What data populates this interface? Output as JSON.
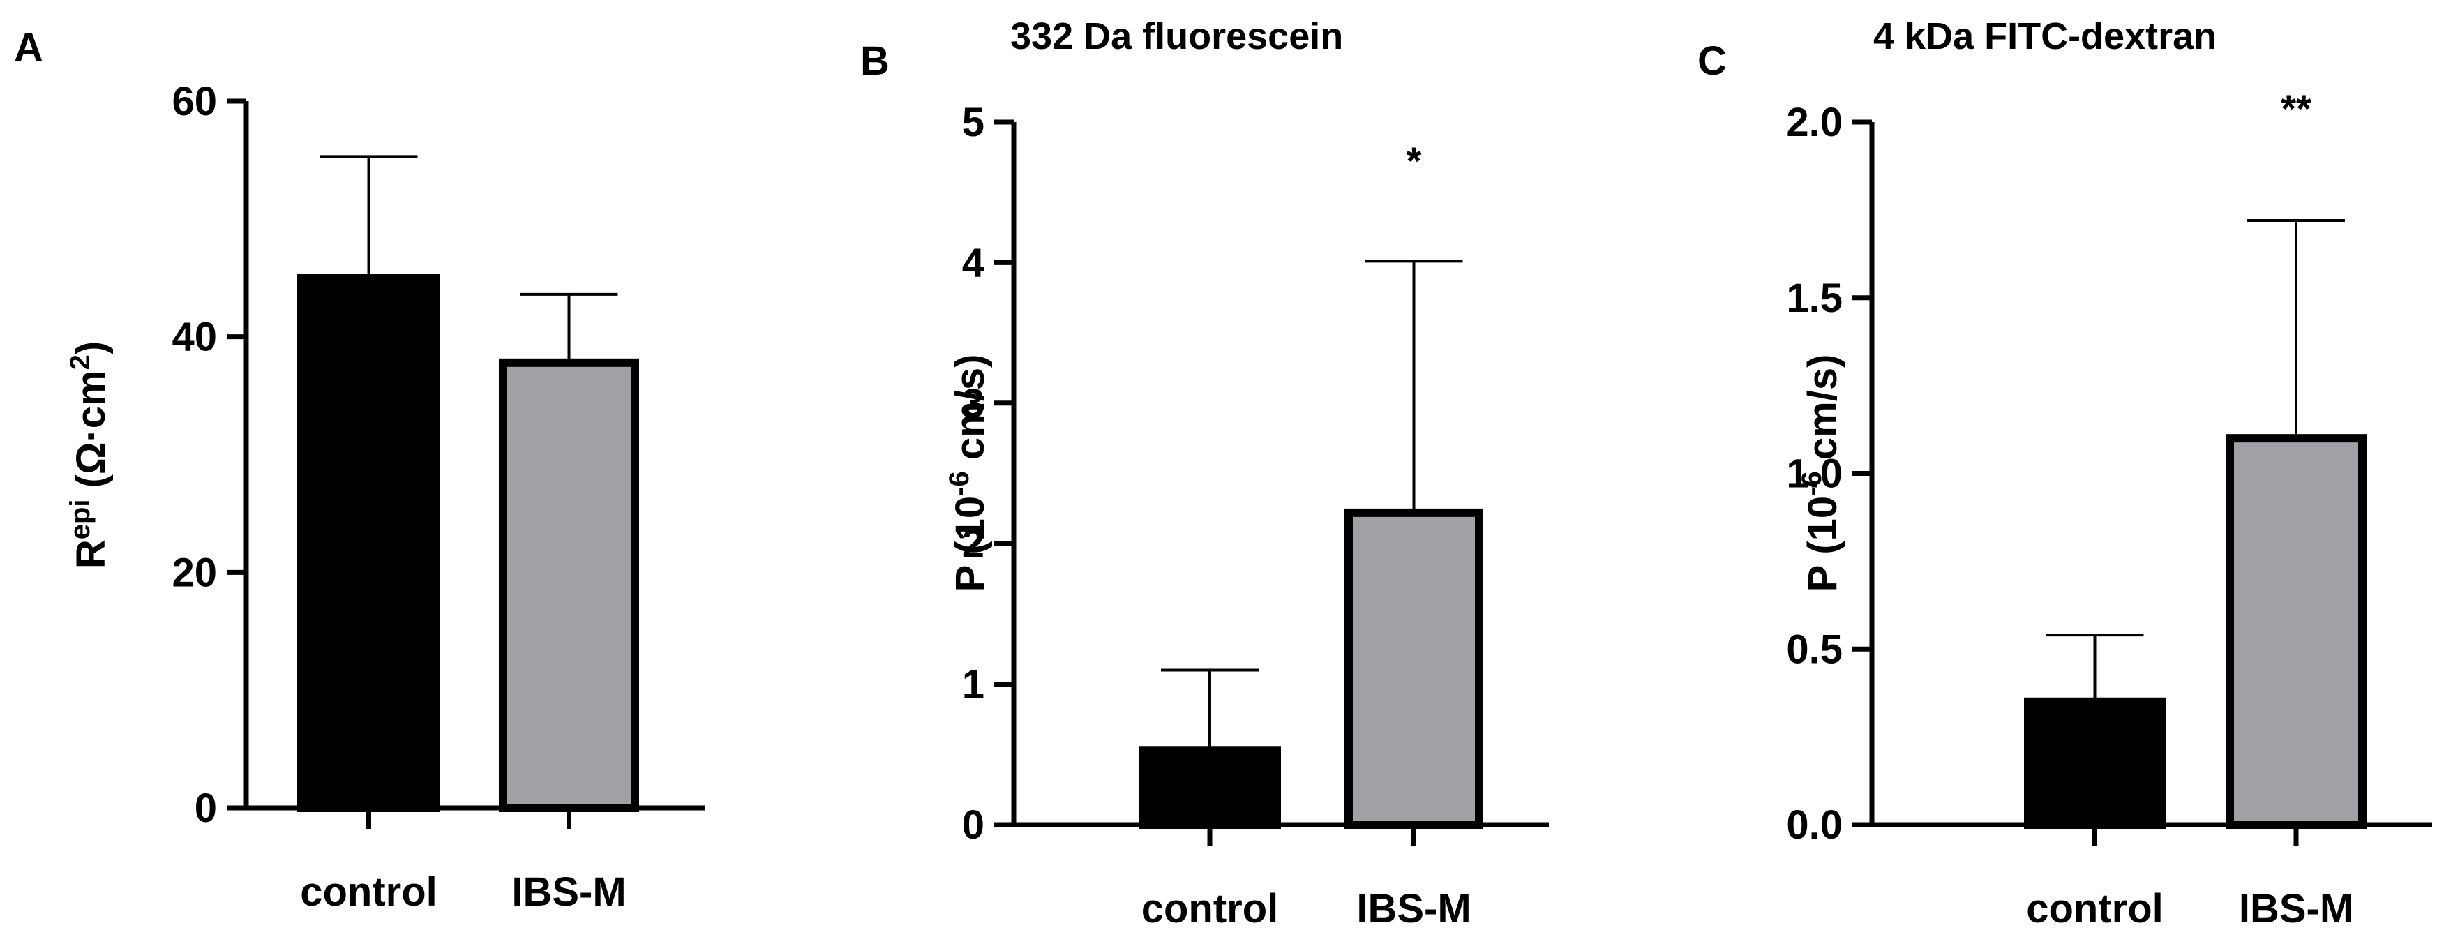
{
  "colors": {
    "control": "#000000",
    "ibs": "#a0a0a5",
    "outline": "#000000"
  },
  "chart_data": [
    {
      "panel": "A",
      "type": "bar",
      "title": "",
      "categories": [
        "control",
        "IBS-M"
      ],
      "values": [
        45,
        37.8
      ],
      "error": [
        10.3,
        5.8
      ],
      "ylabel": {
        "main": "R",
        "sup": "epi",
        "rest": " (Ω·cm",
        "sup2": "2",
        "end": ")"
      },
      "ylim": [
        0,
        60
      ],
      "yticks": [
        "0",
        "20",
        "40",
        "60"
      ],
      "significance": [
        "",
        ""
      ]
    },
    {
      "panel": "B",
      "type": "bar",
      "title": "332 Da fluorescein",
      "categories": [
        "control",
        "IBS-M"
      ],
      "values": [
        0.53,
        2.22
      ],
      "error": [
        0.57,
        1.79
      ],
      "ylabel": {
        "main": "P (10",
        "sup": "-6",
        "rest": " cm/s)",
        "sup2": "",
        "end": ""
      },
      "ylim": [
        0,
        5
      ],
      "yticks": [
        "0",
        "1",
        "2",
        "3",
        "4",
        "5"
      ],
      "significance": [
        "",
        "*"
      ]
    },
    {
      "panel": "C",
      "type": "bar",
      "title": "4 kDa FITC-dextran",
      "categories": [
        "control",
        "IBS-M"
      ],
      "values": [
        0.35,
        1.1
      ],
      "error": [
        0.19,
        0.62
      ],
      "ylabel": {
        "main": "P (10",
        "sup": "-6",
        "rest": " cm/s)",
        "sup2": "",
        "end": ""
      },
      "ylim": [
        0,
        2
      ],
      "yticks": [
        "0.0",
        "0.5",
        "1.0",
        "1.5",
        "2.0"
      ],
      "significance": [
        "",
        "**"
      ]
    }
  ]
}
